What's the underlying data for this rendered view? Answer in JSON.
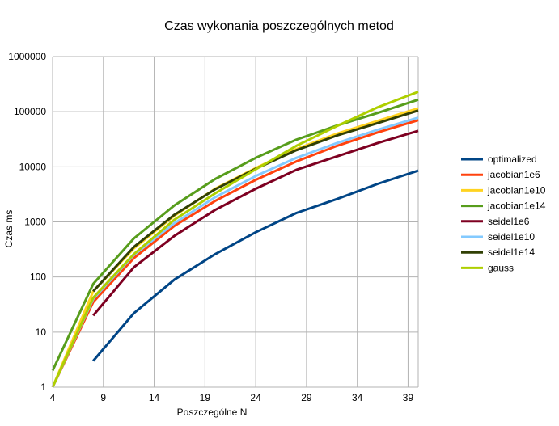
{
  "chart_data": {
    "type": "line",
    "title": "Czas wykonania poszczególnych metod",
    "xlabel": "Poszczególne N",
    "ylabel": "Czas ms",
    "yscale": "log",
    "ylim": [
      1,
      1000000
    ],
    "xlim": [
      4,
      40
    ],
    "x_ticks": [
      "4",
      "9",
      "14",
      "19",
      "24",
      "29",
      "34",
      "39"
    ],
    "y_ticks": [
      "1",
      "10",
      "100",
      "1000",
      "10000",
      "100000",
      "1000000"
    ],
    "grid": true,
    "legend_position": "right",
    "series": [
      {
        "name": "optimalized",
        "color": "#004586",
        "x": [
          8,
          12,
          16,
          20,
          24,
          28,
          32,
          36,
          40
        ],
        "values": [
          3,
          22,
          90,
          260,
          650,
          1450,
          2600,
          4900,
          8500
        ]
      },
      {
        "name": "jacobian1e6",
        "color": "#ff420e",
        "x": [
          4,
          8,
          12,
          16,
          20,
          24,
          28,
          32,
          36,
          40
        ],
        "values": [
          1,
          35,
          220,
          850,
          2400,
          5800,
          12500,
          24000,
          42000,
          70000
        ]
      },
      {
        "name": "jacobian1e10",
        "color": "#ffd320",
        "x": [
          4,
          8,
          12,
          16,
          20,
          24,
          28,
          32,
          36,
          40
        ],
        "values": [
          1,
          55,
          330,
          1300,
          4000,
          9500,
          21000,
          40000,
          68000,
          115000
        ]
      },
      {
        "name": "jacobian1e14",
        "color": "#579d1c",
        "x": [
          4,
          8,
          12,
          16,
          20,
          24,
          28,
          32,
          36,
          40
        ],
        "values": [
          2,
          75,
          500,
          2000,
          6000,
          14500,
          31000,
          56000,
          95000,
          165000
        ]
      },
      {
        "name": "seidel1e6",
        "color": "#7e0021",
        "x": [
          8,
          12,
          16,
          20,
          24,
          28,
          32,
          36,
          40
        ],
        "values": [
          20,
          150,
          560,
          1650,
          4000,
          8800,
          15500,
          27000,
          45000
        ]
      },
      {
        "name": "seidel1e10",
        "color": "#83caff",
        "x": [
          4,
          8,
          12,
          16,
          20,
          24,
          28,
          32,
          36,
          40
        ],
        "values": [
          1,
          40,
          250,
          950,
          2800,
          6800,
          14500,
          27000,
          47000,
          78000
        ]
      },
      {
        "name": "seidel1e14",
        "color": "#314004",
        "x": [
          8,
          12,
          16,
          20,
          24,
          28,
          32,
          36,
          40
        ],
        "values": [
          55,
          350,
          1350,
          3900,
          9200,
          20000,
          37000,
          62000,
          105000
        ]
      },
      {
        "name": "gauss",
        "color": "#aecf00",
        "x": [
          4,
          8,
          12,
          16,
          20,
          24,
          28,
          32,
          36,
          40
        ],
        "values": [
          1,
          42,
          260,
          1100,
          3300,
          9000,
          24000,
          55000,
          120000,
          230000
        ]
      }
    ]
  }
}
